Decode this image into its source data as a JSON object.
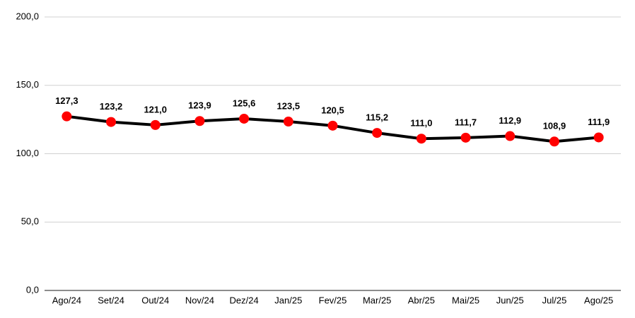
{
  "chart_data": {
    "type": "line",
    "categories": [
      "Ago/24",
      "Set/24",
      "Out/24",
      "Nov/24",
      "Dez/24",
      "Jan/25",
      "Fev/25",
      "Mar/25",
      "Abr/25",
      "Mai/25",
      "Jun/25",
      "Jul/25",
      "Ago/25"
    ],
    "values": [
      127.3,
      123.2,
      121.0,
      123.9,
      125.6,
      123.5,
      120.5,
      115.2,
      111.0,
      111.7,
      112.9,
      108.9,
      111.9
    ],
    "value_labels": [
      "127,3",
      "123,2",
      "121,0",
      "123,9",
      "125,6",
      "123,5",
      "120,5",
      "115,2",
      "111,0",
      "111,7",
      "112,9",
      "108,9",
      "111,9"
    ],
    "color": "#000000",
    "marker_color": "#ff0000",
    "ylim": [
      0,
      200
    ],
    "yticks": [
      {
        "value": 0,
        "label": "0,0"
      },
      {
        "value": 50,
        "label": "50,0"
      },
      {
        "value": 100,
        "label": "100,0"
      },
      {
        "value": 150,
        "label": "150,0"
      },
      {
        "value": 200,
        "label": "200,0"
      }
    ],
    "grid": true
  }
}
